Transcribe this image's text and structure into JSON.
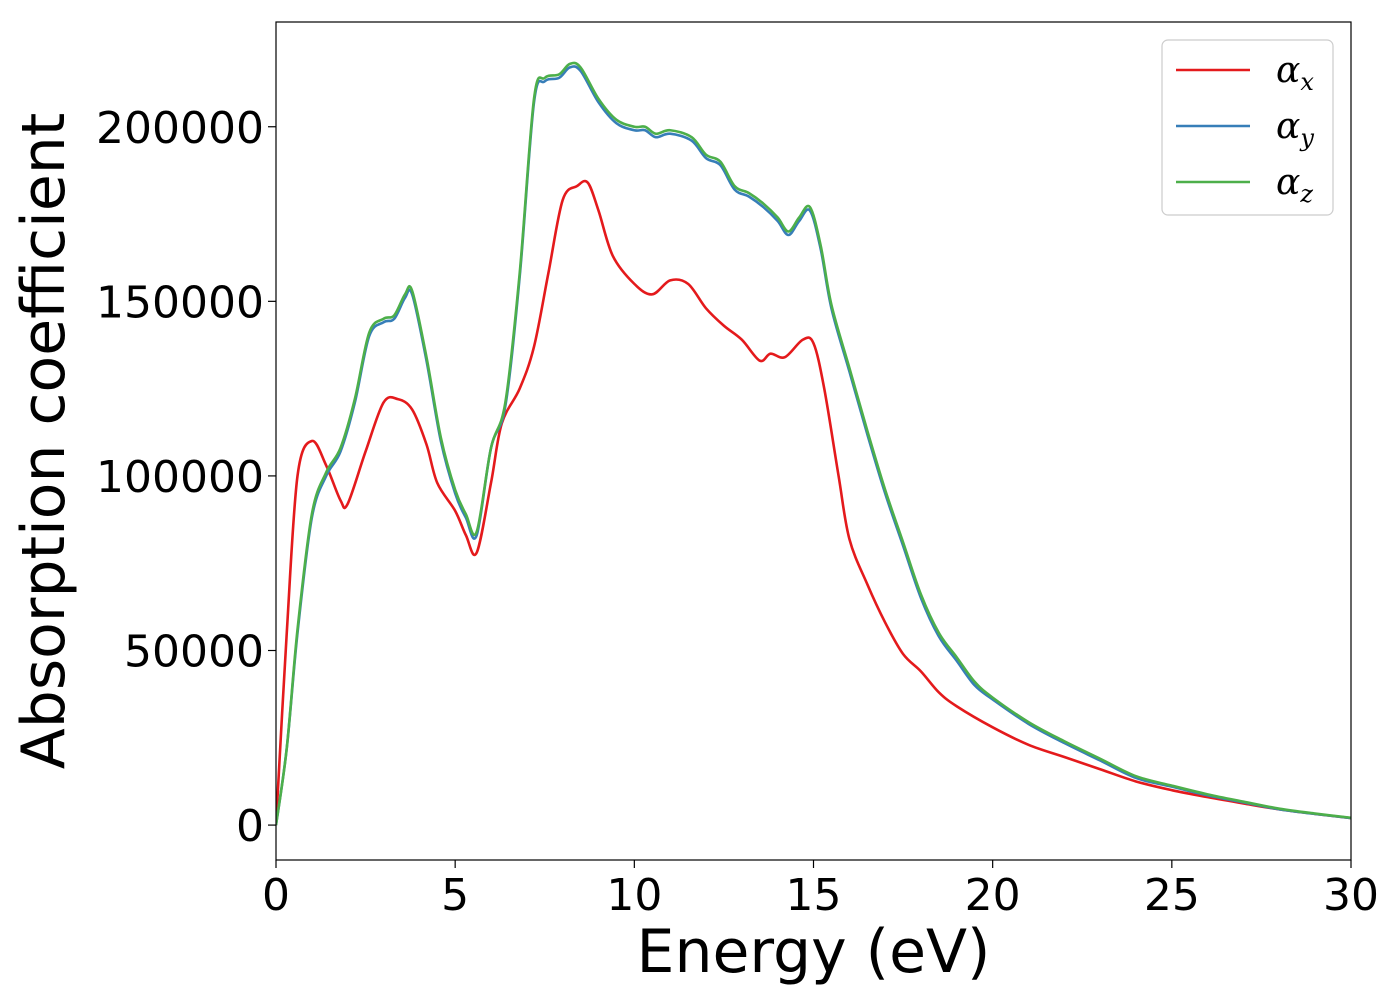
{
  "chart_data": {
    "type": "line",
    "xlabel": "Energy (eV)",
    "ylabel": "Absorption coefficient",
    "xlim": [
      0,
      30
    ],
    "ylim": [
      -10000,
      230000
    ],
    "xticks": [
      0,
      5,
      10,
      15,
      20,
      25,
      30
    ],
    "yticks": [
      0,
      50000,
      100000,
      150000,
      200000
    ],
    "xtick_labels": [
      "0",
      "5",
      "10",
      "15",
      "20",
      "25",
      "30"
    ],
    "ytick_labels": [
      "0",
      "50000",
      "100000",
      "150000",
      "200000"
    ],
    "grid": false,
    "legend_position": "top-right",
    "series": [
      {
        "name": "α_x",
        "label_main": "α",
        "label_sub": "x",
        "color": "#e41a1c",
        "points": [
          [
            0,
            0
          ],
          [
            0.3,
            55000
          ],
          [
            0.6,
            100000
          ],
          [
            1.0,
            110000
          ],
          [
            1.4,
            103000
          ],
          [
            1.8,
            93000
          ],
          [
            2.0,
            92000
          ],
          [
            2.5,
            107000
          ],
          [
            3.0,
            121000
          ],
          [
            3.4,
            122000
          ],
          [
            3.8,
            119000
          ],
          [
            4.2,
            109000
          ],
          [
            4.5,
            98000
          ],
          [
            5.0,
            90000
          ],
          [
            5.3,
            83000
          ],
          [
            5.6,
            78000
          ],
          [
            6.0,
            98000
          ],
          [
            6.3,
            115000
          ],
          [
            6.8,
            125000
          ],
          [
            7.2,
            137000
          ],
          [
            7.6,
            158000
          ],
          [
            8.0,
            179000
          ],
          [
            8.4,
            183000
          ],
          [
            8.7,
            184000
          ],
          [
            9.0,
            176000
          ],
          [
            9.4,
            163000
          ],
          [
            10.0,
            155000
          ],
          [
            10.5,
            152000
          ],
          [
            11.0,
            156000
          ],
          [
            11.5,
            155000
          ],
          [
            12.0,
            148000
          ],
          [
            12.5,
            143000
          ],
          [
            13.0,
            139000
          ],
          [
            13.5,
            133000
          ],
          [
            13.8,
            135000
          ],
          [
            14.2,
            134000
          ],
          [
            14.7,
            139000
          ],
          [
            15.0,
            138000
          ],
          [
            15.3,
            125000
          ],
          [
            15.7,
            100000
          ],
          [
            16.0,
            82000
          ],
          [
            16.5,
            69000
          ],
          [
            17.0,
            58000
          ],
          [
            17.5,
            49000
          ],
          [
            18.0,
            44000
          ],
          [
            18.5,
            38000
          ],
          [
            19.0,
            34000
          ],
          [
            20.0,
            28000
          ],
          [
            21.0,
            23000
          ],
          [
            22.0,
            19500
          ],
          [
            23.0,
            16000
          ],
          [
            24.0,
            12500
          ],
          [
            25.0,
            10000
          ],
          [
            26.0,
            8000
          ],
          [
            27.0,
            6200
          ],
          [
            28.0,
            4500
          ],
          [
            29.0,
            3200
          ],
          [
            30.0,
            2000
          ]
        ]
      },
      {
        "name": "α_y",
        "label_main": "α",
        "label_sub": "y",
        "color": "#377eb8",
        "points": [
          [
            0,
            0
          ],
          [
            0.3,
            22000
          ],
          [
            0.6,
            55000
          ],
          [
            1.0,
            88000
          ],
          [
            1.4,
            100000
          ],
          [
            1.8,
            107000
          ],
          [
            2.2,
            121000
          ],
          [
            2.6,
            140000
          ],
          [
            3.0,
            144000
          ],
          [
            3.3,
            145000
          ],
          [
            3.6,
            151000
          ],
          [
            3.8,
            152000
          ],
          [
            4.2,
            133000
          ],
          [
            4.6,
            110000
          ],
          [
            5.0,
            95000
          ],
          [
            5.3,
            88000
          ],
          [
            5.6,
            83000
          ],
          [
            6.0,
            108000
          ],
          [
            6.4,
            120000
          ],
          [
            6.8,
            157000
          ],
          [
            7.2,
            207000
          ],
          [
            7.5,
            213000
          ],
          [
            7.9,
            214000
          ],
          [
            8.2,
            217000
          ],
          [
            8.5,
            216000
          ],
          [
            9.0,
            207000
          ],
          [
            9.5,
            201000
          ],
          [
            10.0,
            199000
          ],
          [
            10.3,
            199000
          ],
          [
            10.6,
            197000
          ],
          [
            11.0,
            198000
          ],
          [
            11.6,
            196000
          ],
          [
            12.0,
            191000
          ],
          [
            12.4,
            189000
          ],
          [
            12.8,
            182000
          ],
          [
            13.2,
            180000
          ],
          [
            13.6,
            177000
          ],
          [
            14.0,
            173000
          ],
          [
            14.3,
            169000
          ],
          [
            14.6,
            173000
          ],
          [
            14.9,
            176000
          ],
          [
            15.2,
            165000
          ],
          [
            15.5,
            148000
          ],
          [
            16.0,
            130000
          ],
          [
            16.5,
            112000
          ],
          [
            17.0,
            95000
          ],
          [
            17.5,
            80000
          ],
          [
            18.0,
            65000
          ],
          [
            18.5,
            54000
          ],
          [
            19.0,
            47000
          ],
          [
            19.5,
            40000
          ],
          [
            20.0,
            36000
          ],
          [
            21.0,
            29000
          ],
          [
            22.0,
            23500
          ],
          [
            23.0,
            18500
          ],
          [
            24.0,
            13500
          ],
          [
            25.0,
            11000
          ],
          [
            26.0,
            8500
          ],
          [
            27.0,
            6500
          ],
          [
            28.0,
            4500
          ],
          [
            29.0,
            3200
          ],
          [
            30.0,
            2000
          ]
        ]
      },
      {
        "name": "α_z",
        "label_main": "α",
        "label_sub": "z",
        "color": "#4daf4a",
        "points": [
          [
            0,
            0
          ],
          [
            0.3,
            22000
          ],
          [
            0.6,
            56000
          ],
          [
            1.0,
            89000
          ],
          [
            1.4,
            101000
          ],
          [
            1.8,
            108000
          ],
          [
            2.2,
            122000
          ],
          [
            2.6,
            141000
          ],
          [
            3.0,
            145000
          ],
          [
            3.3,
            146000
          ],
          [
            3.6,
            152000
          ],
          [
            3.8,
            153000
          ],
          [
            4.2,
            134000
          ],
          [
            4.6,
            111000
          ],
          [
            5.0,
            96000
          ],
          [
            5.3,
            89000
          ],
          [
            5.6,
            84000
          ],
          [
            6.0,
            108000
          ],
          [
            6.4,
            121000
          ],
          [
            6.8,
            158000
          ],
          [
            7.2,
            208000
          ],
          [
            7.5,
            214000
          ],
          [
            7.9,
            215000
          ],
          [
            8.2,
            218000
          ],
          [
            8.5,
            217000
          ],
          [
            9.0,
            208000
          ],
          [
            9.5,
            202000
          ],
          [
            10.0,
            200000
          ],
          [
            10.3,
            200000
          ],
          [
            10.6,
            198000
          ],
          [
            11.0,
            199000
          ],
          [
            11.6,
            197000
          ],
          [
            12.0,
            192000
          ],
          [
            12.4,
            190000
          ],
          [
            12.8,
            183000
          ],
          [
            13.2,
            181000
          ],
          [
            13.6,
            178000
          ],
          [
            14.0,
            174000
          ],
          [
            14.3,
            170000
          ],
          [
            14.6,
            174000
          ],
          [
            14.9,
            177000
          ],
          [
            15.2,
            166000
          ],
          [
            15.5,
            149000
          ],
          [
            16.0,
            131000
          ],
          [
            16.5,
            113000
          ],
          [
            17.0,
            96000
          ],
          [
            17.5,
            81000
          ],
          [
            18.0,
            66000
          ],
          [
            18.5,
            55000
          ],
          [
            19.0,
            48000
          ],
          [
            19.5,
            41000
          ],
          [
            20.0,
            36500
          ],
          [
            21.0,
            29500
          ],
          [
            22.0,
            24000
          ],
          [
            23.0,
            19000
          ],
          [
            24.0,
            14000
          ],
          [
            25.0,
            11300
          ],
          [
            26.0,
            8800
          ],
          [
            27.0,
            6700
          ],
          [
            28.0,
            4700
          ],
          [
            29.0,
            3300
          ],
          [
            30.0,
            2100
          ]
        ]
      }
    ]
  }
}
